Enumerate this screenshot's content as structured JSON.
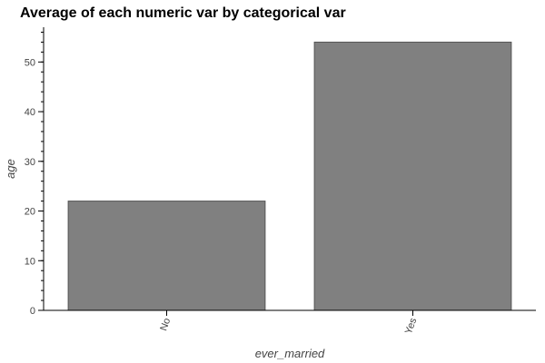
{
  "chart_data": {
    "type": "bar",
    "title": "Average of each numeric var by categorical var",
    "xlabel": "ever_married",
    "ylabel": "age",
    "categories": [
      "No",
      "Yes"
    ],
    "values": [
      22.0,
      54.0
    ],
    "ylim": [
      0,
      57
    ],
    "yticks": [
      0,
      10,
      20,
      30,
      40,
      50
    ],
    "tick_labels": [
      "0",
      "10",
      "20",
      "30",
      "40",
      "50"
    ],
    "grid": false,
    "bar_color": "#808080",
    "bar_edge_color": "#555555"
  }
}
